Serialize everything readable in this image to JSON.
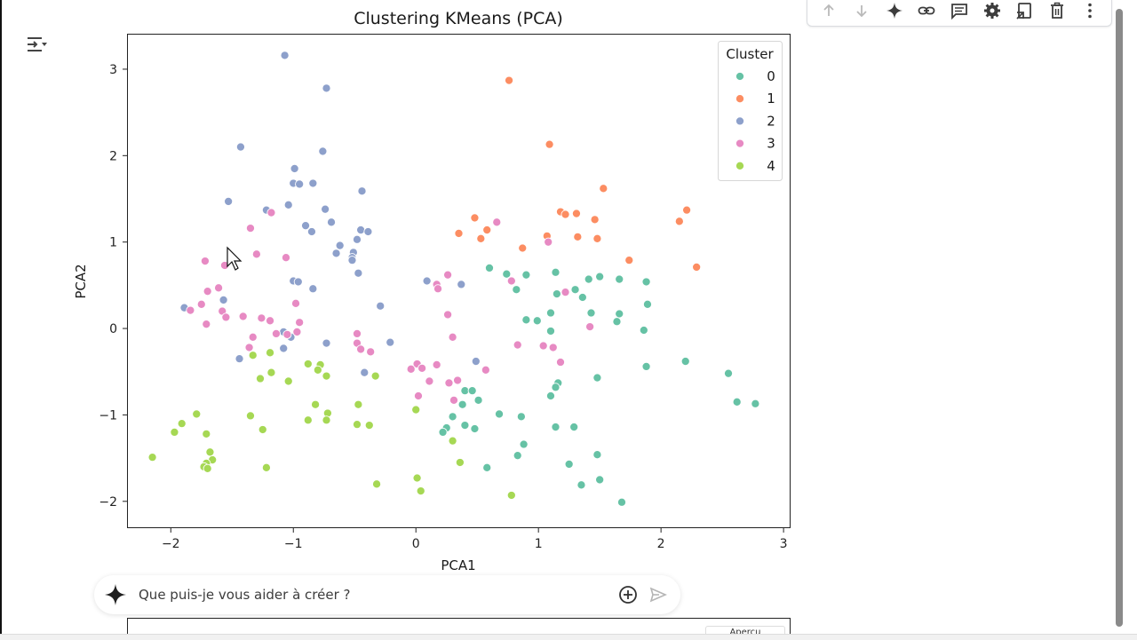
{
  "toolbar": {
    "buttons": [
      "arrow-up",
      "arrow-down",
      "gemini-spark",
      "link",
      "comment",
      "settings",
      "mirror-cell",
      "delete",
      "more-vert"
    ]
  },
  "prompt": {
    "placeholder": "Que puis-je vous aider à créer ?"
  },
  "next_output": {
    "legend_title_partial": "Aperçu"
  },
  "chart_data": {
    "type": "scatter",
    "title": "Clustering KMeans (PCA)",
    "xlabel": "PCA1",
    "ylabel": "PCA2",
    "xlim": [
      -2.35,
      3.05
    ],
    "ylim": [
      -2.3,
      3.4
    ],
    "xticks": [
      -2,
      -1,
      0,
      1,
      2,
      3
    ],
    "yticks": [
      -2,
      -1,
      0,
      1,
      2,
      3
    ],
    "xtick_labels": [
      "−2",
      "−1",
      "0",
      "1",
      "2",
      "3"
    ],
    "ytick_labels": [
      "−2",
      "−1",
      "0",
      "1",
      "2",
      "3"
    ],
    "grid": false,
    "legend": {
      "title": "Cluster",
      "placement": "top-right"
    },
    "series": [
      {
        "name": "0",
        "color": "#66c2a5",
        "points": [
          [
            0.6,
            0.7
          ],
          [
            0.74,
            0.63
          ],
          [
            0.82,
            0.45
          ],
          [
            0.9,
            0.62
          ],
          [
            1.14,
            0.65
          ],
          [
            1.15,
            0.4
          ],
          [
            1.3,
            0.45
          ],
          [
            1.41,
            0.57
          ],
          [
            1.5,
            0.6
          ],
          [
            1.66,
            0.57
          ],
          [
            1.88,
            0.54
          ],
          [
            1.36,
            0.36
          ],
          [
            1.43,
            0.18
          ],
          [
            1.66,
            0.17
          ],
          [
            1.89,
            0.28
          ],
          [
            1.1,
            0.18
          ],
          [
            0.9,
            0.1
          ],
          [
            0.99,
            0.09
          ],
          [
            1.64,
            0.08
          ],
          [
            1.86,
            -0.02
          ],
          [
            1.1,
            -0.03
          ],
          [
            2.2,
            -0.38
          ],
          [
            1.88,
            -0.44
          ],
          [
            2.55,
            -0.52
          ],
          [
            1.48,
            -0.57
          ],
          [
            1.16,
            -0.63
          ],
          [
            1.14,
            -0.68
          ],
          [
            1.1,
            -0.78
          ],
          [
            2.62,
            -0.85
          ],
          [
            2.77,
            -0.87
          ],
          [
            0.4,
            -0.72
          ],
          [
            0.46,
            -0.72
          ],
          [
            0.51,
            -0.83
          ],
          [
            0.38,
            -0.88
          ],
          [
            0.68,
            -0.99
          ],
          [
            0.86,
            -1.02
          ],
          [
            0.3,
            -1.02
          ],
          [
            0.25,
            -1.15
          ],
          [
            0.22,
            -1.2
          ],
          [
            0.4,
            -1.12
          ],
          [
            0.48,
            -1.16
          ],
          [
            1.14,
            -1.14
          ],
          [
            1.29,
            -1.14
          ],
          [
            0.88,
            -1.34
          ],
          [
            0.83,
            -1.47
          ],
          [
            1.48,
            -1.46
          ],
          [
            1.25,
            -1.57
          ],
          [
            0.58,
            -1.61
          ],
          [
            1.5,
            -1.75
          ],
          [
            1.35,
            -1.81
          ],
          [
            1.68,
            -2.01
          ]
        ]
      },
      {
        "name": "1",
        "color": "#fc8d62",
        "points": [
          [
            0.76,
            2.87
          ],
          [
            1.09,
            2.13
          ],
          [
            1.53,
            1.62
          ],
          [
            1.18,
            1.35
          ],
          [
            1.22,
            1.32
          ],
          [
            1.31,
            1.33
          ],
          [
            1.46,
            1.26
          ],
          [
            0.48,
            1.28
          ],
          [
            0.58,
            1.14
          ],
          [
            0.53,
            1.04
          ],
          [
            0.35,
            1.1
          ],
          [
            1.32,
            1.06
          ],
          [
            1.07,
            1.07
          ],
          [
            1.48,
            1.04
          ],
          [
            2.21,
            1.37
          ],
          [
            2.15,
            1.24
          ],
          [
            0.87,
            0.93
          ],
          [
            1.74,
            0.79
          ],
          [
            2.29,
            0.71
          ]
        ]
      },
      {
        "name": "2",
        "color": "#8da0cb",
        "points": [
          [
            -1.07,
            3.16
          ],
          [
            -0.73,
            2.78
          ],
          [
            -1.43,
            2.1
          ],
          [
            -0.76,
            2.05
          ],
          [
            -0.99,
            1.85
          ],
          [
            -1.0,
            1.68
          ],
          [
            -0.95,
            1.67
          ],
          [
            -0.84,
            1.68
          ],
          [
            -0.44,
            1.59
          ],
          [
            -1.53,
            1.47
          ],
          [
            -1.22,
            1.37
          ],
          [
            -1.04,
            1.43
          ],
          [
            -0.74,
            1.38
          ],
          [
            -0.69,
            1.23
          ],
          [
            -0.9,
            1.19
          ],
          [
            -0.85,
            1.12
          ],
          [
            -0.45,
            1.14
          ],
          [
            -0.39,
            1.12
          ],
          [
            -0.48,
            1.03
          ],
          [
            -0.62,
            0.96
          ],
          [
            -0.65,
            0.87
          ],
          [
            -0.51,
            0.88
          ],
          [
            -0.52,
            0.82
          ],
          [
            -0.52,
            0.79
          ],
          [
            -0.47,
            0.64
          ],
          [
            -1.0,
            0.55
          ],
          [
            -0.96,
            0.54
          ],
          [
            -0.84,
            0.46
          ],
          [
            -1.57,
            0.33
          ],
          [
            -0.29,
            0.26
          ],
          [
            -1.89,
            0.24
          ],
          [
            0.09,
            0.55
          ],
          [
            0.37,
            0.51
          ],
          [
            -1.08,
            -0.04
          ],
          [
            -1.02,
            -0.1
          ],
          [
            -0.73,
            -0.17
          ],
          [
            -0.21,
            -0.16
          ],
          [
            -1.44,
            -0.35
          ],
          [
            -1.08,
            -0.23
          ],
          [
            -0.42,
            -0.51
          ],
          [
            0.49,
            -0.38
          ]
        ]
      },
      {
        "name": "3",
        "color": "#e78ac3",
        "points": [
          [
            0.66,
            1.23
          ],
          [
            -1.18,
            1.34
          ],
          [
            -1.35,
            1.16
          ],
          [
            -1.06,
            0.82
          ],
          [
            -1.3,
            0.86
          ],
          [
            -1.72,
            0.78
          ],
          [
            -1.56,
            0.73
          ],
          [
            -1.61,
            0.47
          ],
          [
            -1.7,
            0.43
          ],
          [
            1.08,
            1.0
          ],
          [
            0.78,
            0.55
          ],
          [
            0.26,
            0.62
          ],
          [
            0.17,
            0.51
          ],
          [
            0.18,
            0.46
          ],
          [
            1.22,
            0.42
          ],
          [
            -1.75,
            0.28
          ],
          [
            -1.84,
            0.21
          ],
          [
            -1.58,
            0.2
          ],
          [
            -1.55,
            0.13
          ],
          [
            -1.41,
            0.14
          ],
          [
            -1.26,
            0.12
          ],
          [
            -1.19,
            0.09
          ],
          [
            -0.98,
            0.29
          ],
          [
            -0.95,
            0.07
          ],
          [
            -1.71,
            0.05
          ],
          [
            0.26,
            0.16
          ],
          [
            1.42,
            0.02
          ],
          [
            -1.14,
            -0.06
          ],
          [
            -1.05,
            -0.07
          ],
          [
            -0.97,
            -0.04
          ],
          [
            -0.48,
            -0.06
          ],
          [
            -0.48,
            -0.17
          ],
          [
            -0.45,
            -0.24
          ],
          [
            -0.37,
            -0.27
          ],
          [
            -1.33,
            -0.1
          ],
          [
            -1.36,
            -0.22
          ],
          [
            0.3,
            -0.1
          ],
          [
            0.83,
            -0.19
          ],
          [
            1.04,
            -0.2
          ],
          [
            1.12,
            -0.22
          ],
          [
            1.18,
            -0.39
          ],
          [
            0.01,
            -0.41
          ],
          [
            0.05,
            -0.46
          ],
          [
            -0.04,
            -0.47
          ],
          [
            0.17,
            -0.42
          ],
          [
            0.57,
            -0.48
          ],
          [
            0.11,
            -0.61
          ],
          [
            0.34,
            -0.6
          ],
          [
            0.27,
            -0.63
          ],
          [
            0.31,
            -0.83
          ],
          [
            0.02,
            -0.78
          ]
        ]
      },
      {
        "name": "4",
        "color": "#a6d854",
        "points": [
          [
            -1.33,
            -0.31
          ],
          [
            -1.19,
            -0.28
          ],
          [
            -0.88,
            -0.41
          ],
          [
            -0.78,
            -0.42
          ],
          [
            -0.8,
            -0.48
          ],
          [
            -1.18,
            -0.51
          ],
          [
            -1.27,
            -0.58
          ],
          [
            -1.04,
            -0.61
          ],
          [
            -0.73,
            -0.55
          ],
          [
            -0.33,
            -0.55
          ],
          [
            -0.82,
            -0.88
          ],
          [
            -0.47,
            -0.88
          ],
          [
            -0.72,
            -0.98
          ],
          [
            -0.73,
            -1.06
          ],
          [
            -0.88,
            -1.06
          ],
          [
            -0.48,
            -1.11
          ],
          [
            -0.38,
            -1.12
          ],
          [
            -1.35,
            -1.01
          ],
          [
            -1.25,
            -1.17
          ],
          [
            -1.79,
            -0.99
          ],
          [
            -1.91,
            -1.1
          ],
          [
            -1.97,
            -1.2
          ],
          [
            -1.71,
            -1.22
          ],
          [
            0.0,
            -0.94
          ],
          [
            -2.15,
            -1.49
          ],
          [
            -1.68,
            -1.43
          ],
          [
            -1.66,
            -1.52
          ],
          [
            -1.71,
            -1.56
          ],
          [
            -1.73,
            -1.6
          ],
          [
            -1.7,
            -1.62
          ],
          [
            -1.22,
            -1.61
          ],
          [
            0.3,
            -1.3
          ],
          [
            0.36,
            -1.55
          ],
          [
            0.01,
            -1.73
          ],
          [
            0.04,
            -1.88
          ],
          [
            -0.32,
            -1.8
          ],
          [
            0.78,
            -1.93
          ]
        ]
      }
    ]
  }
}
